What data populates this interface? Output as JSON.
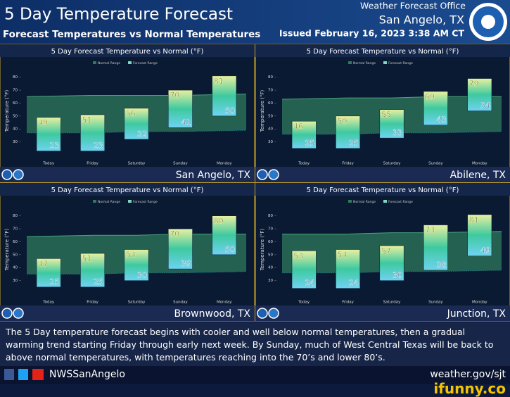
{
  "header": {
    "title": "5 Day Temperature Forecast",
    "subtitle": "Forecast Temperatures vs Normal Temperatures",
    "office": "Weather Forecast Office",
    "location": "San Angelo, TX",
    "issued": "Issued February 16, 2023 3:38 AM CT"
  },
  "chart_data": [
    {
      "type": "range-bar",
      "title": "5 Day Forecast Temperature vs Normal (°F)",
      "location": "San Angelo, TX",
      "y_label": "Temperature (°F)",
      "categories": [
        "Today",
        "Friday",
        "Saturday",
        "Sunday",
        "Monday"
      ],
      "series": [
        {
          "name": "Normal Range",
          "color": "#2f7a5c",
          "high": [
            65,
            66,
            66,
            66,
            67
          ],
          "low": [
            37,
            37,
            38,
            38,
            39
          ]
        },
        {
          "name": "Forecast Range",
          "color": "#7fd6c2",
          "high": [
            49,
            51,
            56,
            70,
            81
          ],
          "low": [
            23,
            23,
            32,
            41,
            50
          ]
        }
      ],
      "ylim": [
        20,
        88
      ],
      "yticks": [
        30,
        40,
        50,
        60,
        70,
        80
      ]
    },
    {
      "type": "range-bar",
      "title": "5 Day Forecast Temperature vs Normal (°F)",
      "location": "Abilene, TX",
      "y_label": "Temperature (°F)",
      "categories": [
        "Today",
        "Friday",
        "Saturday",
        "Sunday",
        "Monday"
      ],
      "series": [
        {
          "name": "Normal Range",
          "color": "#2f7a5c",
          "high": [
            63,
            64,
            64,
            65,
            65
          ],
          "low": [
            36,
            36,
            37,
            37,
            38
          ]
        },
        {
          "name": "Forecast Range",
          "color": "#7fd6c2",
          "high": [
            46,
            50,
            55,
            69,
            79
          ],
          "low": [
            25,
            25,
            33,
            43,
            54
          ]
        }
      ],
      "ylim": [
        20,
        88
      ],
      "yticks": [
        30,
        40,
        50,
        60,
        70,
        80
      ]
    },
    {
      "type": "range-bar",
      "title": "5 Day Forecast Temperature vs Normal (°F)",
      "location": "Brownwood, TX",
      "y_label": "Temperature (°F)",
      "categories": [
        "Today",
        "Friday",
        "Saturday",
        "Sunday",
        "Monday"
      ],
      "series": [
        {
          "name": "Normal Range",
          "color": "#2f7a5c",
          "high": [
            64,
            65,
            65,
            66,
            66
          ],
          "low": [
            35,
            35,
            36,
            36,
            37
          ]
        },
        {
          "name": "Forecast Range",
          "color": "#7fd6c2",
          "high": [
            47,
            51,
            54,
            70,
            80
          ],
          "low": [
            25,
            25,
            30,
            39,
            50
          ]
        }
      ],
      "ylim": [
        20,
        88
      ],
      "yticks": [
        30,
        40,
        50,
        60,
        70,
        80
      ]
    },
    {
      "type": "range-bar",
      "title": "5 Day Forecast Temperature vs Normal (°F)",
      "location": "Junction, TX",
      "y_label": "Temperature (°F)",
      "categories": [
        "Today",
        "Friday",
        "Saturday",
        "Sunday",
        "Monday"
      ],
      "series": [
        {
          "name": "Normal Range",
          "color": "#2f7a5c",
          "high": [
            66,
            66,
            67,
            67,
            68
          ],
          "low": [
            36,
            36,
            37,
            37,
            38
          ]
        },
        {
          "name": "Forecast Range",
          "color": "#7fd6c2",
          "high": [
            53,
            54,
            57,
            73,
            81
          ],
          "low": [
            24,
            24,
            30,
            38,
            49
          ]
        }
      ],
      "ylim": [
        20,
        88
      ],
      "yticks": [
        30,
        40,
        50,
        60,
        70,
        80
      ]
    }
  ],
  "footer": {
    "text": "The 5 Day temperature forecast begins with cooler and well below normal temperatures, then a gradual warming trend starting Friday through early next week.  By Sunday, much of West Central Texas will be back to above normal temperatures, with temperatures reaching into the 70’s and lower 80’s.",
    "social": "NWSSanAngelo",
    "url": "weather.gov/sjt",
    "watermark": "ifunny.co"
  }
}
